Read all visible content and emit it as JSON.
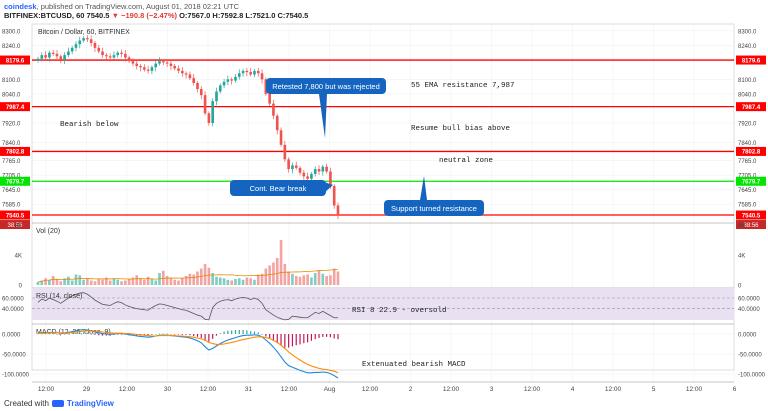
{
  "header": {
    "author": "coindesk",
    "published": "published on TradingView.com, August 01, 2018 02:21 UTC",
    "symbol": "BITFINEX:BTCUSD, 60",
    "last": "7540.5",
    "change_arrow": "▼",
    "change": "−190.8 (−2.47%)",
    "ohlc": "O:7567.0 H:7592.8 L:7521.0 C:7540.5"
  },
  "footer": {
    "created_with": "Created with",
    "brand": "TradingView"
  },
  "colors": {
    "up": "#26a69a",
    "down": "#ef5350",
    "resistance": "#ff0000",
    "support": "#00e600",
    "callout": "#1565c0",
    "macd": "#1e88e5",
    "signal": "#ff8c00",
    "rsi": "#555555",
    "rsi_band": "#e9e0f2"
  },
  "chart_data": [
    {
      "type": "candlestick",
      "title": "Bitcoin / Dollar, 60, BITFINEX",
      "x_ticks": [
        "12:00",
        "29",
        "12:00",
        "30",
        "12:00",
        "31",
        "12:00",
        "Aug",
        "12:00",
        "2",
        "12:00",
        "3",
        "12:00",
        "4",
        "12:00",
        "5",
        "12:00",
        "6"
      ],
      "y_ticks": [
        "8300.0",
        "8240.0",
        "8100.0",
        "8040.0",
        "7920.0",
        "7840.0",
        "7765.0",
        "7705.0",
        "7645.0",
        "7585.0"
      ],
      "ylim": [
        7520,
        8320
      ],
      "series": [
        {
          "x": [
            0,
            1,
            2,
            3,
            4,
            5,
            6,
            7,
            8,
            9,
            10,
            11,
            12,
            13,
            14,
            15,
            16,
            17,
            18,
            19,
            20,
            21,
            22,
            23,
            24,
            25,
            26,
            27,
            28,
            29,
            30,
            31,
            32,
            33,
            34,
            35,
            36,
            37,
            38,
            39,
            40,
            41,
            42,
            43,
            44,
            45,
            46,
            47,
            48,
            49,
            50,
            51,
            52,
            53,
            54,
            55,
            56,
            57,
            58,
            59,
            60,
            61,
            62,
            63,
            64,
            65,
            66,
            67,
            68,
            69,
            70,
            71,
            72,
            73,
            74,
            75,
            76,
            77,
            78,
            79
          ],
          "close": [
            8185,
            8200,
            8190,
            8210,
            8205,
            8195,
            8180,
            8200,
            8215,
            8230,
            8245,
            8260,
            8270,
            8265,
            8250,
            8230,
            8215,
            8200,
            8195,
            8190,
            8200,
            8210,
            8205,
            8190,
            8175,
            8165,
            8155,
            8150,
            8140,
            8135,
            8150,
            8165,
            8175,
            8170,
            8165,
            8155,
            8145,
            8135,
            8125,
            8120,
            8105,
            8085,
            8060,
            8035,
            7960,
            7920,
            8010,
            8050,
            8075,
            8090,
            8100,
            8095,
            8110,
            8125,
            8135,
            8130,
            8120,
            8135,
            8125,
            8100,
            8040,
            8000,
            7950,
            7890,
            7830,
            7770,
            7730,
            7745,
            7735,
            7715,
            7700,
            7690,
            7710,
            7730,
            7720,
            7740,
            7720,
            7660,
            7580,
            7540
          ]
        }
      ],
      "horizontal_levels": [
        {
          "value": 8179.6,
          "label": "8179.6",
          "color": "#ff0000"
        },
        {
          "value": 7987.4,
          "label": "7987.4",
          "color": "#ff0000"
        },
        {
          "value": 7802.8,
          "label": "7802.8",
          "color": "#ff0000"
        },
        {
          "value": 7679.7,
          "label": "7679.7",
          "color": "#00e600"
        },
        {
          "value": 7540.5,
          "label": "7540.5",
          "sub": "38:56",
          "color": "#ff0000"
        }
      ],
      "annotations": [
        "Retested 7,800 but was rejected",
        "55 EMA resistance 7,987",
        "Bearish below",
        "Resume bull bias above",
        "neutral zone",
        "Cont. Bear break",
        "Support turned resistance"
      ]
    },
    {
      "type": "bar",
      "title": "Vol (20)",
      "y_ticks": [
        "8K",
        "4K",
        "0"
      ],
      "ylim": [
        0,
        8000
      ],
      "values": [
        400,
        600,
        900,
        700,
        1200,
        800,
        500,
        900,
        1100,
        600,
        1400,
        1300,
        700,
        900,
        600,
        500,
        800,
        700,
        1000,
        600,
        900,
        700,
        500,
        600,
        800,
        1000,
        1300,
        900,
        700,
        1100,
        800,
        600,
        1600,
        1900,
        1200,
        900,
        700,
        600,
        900,
        1200,
        1500,
        1400,
        1800,
        2200,
        2800,
        2300,
        1600,
        1100,
        1000,
        900,
        700,
        600,
        800,
        900,
        700,
        1000,
        900,
        700,
        1400,
        1500,
        2200,
        2600,
        3000,
        3600,
        6000,
        2800,
        1800,
        1500,
        1200,
        1100,
        1300,
        1400,
        1000,
        1600,
        1900,
        1500,
        1200,
        1300,
        2200,
        1800
      ]
    },
    {
      "type": "line",
      "title": "RSI (14, close)",
      "y_ticks": [
        "60.0000",
        "40.0000"
      ],
      "ylim": [
        15,
        75
      ],
      "annotation": "RSI 8 22.9 - oversold",
      "series": [
        {
          "name": "RSI",
          "values": [
            52,
            58,
            55,
            60,
            57,
            54,
            50,
            55,
            60,
            64,
            67,
            69,
            70,
            67,
            62,
            56,
            52,
            48,
            47,
            46,
            50,
            53,
            51,
            47,
            44,
            42,
            40,
            39,
            38,
            37,
            42,
            46,
            49,
            48,
            46,
            44,
            42,
            40,
            38,
            37,
            34,
            31,
            28,
            26,
            20,
            19,
            42,
            50,
            54,
            56,
            57,
            55,
            58,
            60,
            61,
            60,
            57,
            60,
            57,
            50,
            38,
            33,
            28,
            24,
            21,
            19,
            20,
            26,
            25,
            24,
            23,
            23,
            28,
            33,
            31,
            35,
            31,
            27,
            23,
            22.9
          ]
        }
      ]
    },
    {
      "type": "line",
      "title": "MACD (12, 26, close, 9)",
      "y_ticks": [
        "0.0000",
        "-50.0000",
        "-100.0000"
      ],
      "ylim": [
        -115,
        20
      ],
      "annotation": "Extenuated bearish MACD",
      "series": [
        {
          "name": "MACD",
          "values": [
            2,
            3,
            3,
            4,
            4,
            3,
            2,
            3,
            4,
            6,
            8,
            10,
            11,
            10,
            8,
            5,
            3,
            1,
            0,
            -1,
            0,
            1,
            1,
            0,
            -2,
            -3,
            -5,
            -6,
            -7,
            -8,
            -7,
            -5,
            -3,
            -3,
            -3,
            -4,
            -5,
            -6,
            -7,
            -8,
            -10,
            -13,
            -17,
            -22,
            -32,
            -40,
            -36,
            -30,
            -24,
            -19,
            -15,
            -12,
            -9,
            -6,
            -4,
            -3,
            -3,
            -2,
            -3,
            -7,
            -15,
            -23,
            -33,
            -44,
            -57,
            -70,
            -79,
            -83,
            -87,
            -91,
            -94,
            -97,
            -97,
            -96,
            -96,
            -95,
            -96,
            -99,
            -104,
            -110
          ]
        },
        {
          "name": "Signal",
          "values": [
            1,
            2,
            2,
            3,
            3,
            3,
            3,
            3,
            3,
            4,
            5,
            6,
            7,
            8,
            8,
            7,
            6,
            5,
            4,
            3,
            2,
            2,
            2,
            1,
            1,
            0,
            -1,
            -2,
            -3,
            -4,
            -5,
            -5,
            -4,
            -4,
            -4,
            -4,
            -4,
            -5,
            -5,
            -6,
            -7,
            -8,
            -10,
            -12,
            -16,
            -21,
            -24,
            -26,
            -26,
            -25,
            -23,
            -21,
            -19,
            -16,
            -14,
            -12,
            -10,
            -8,
            -7,
            -7,
            -9,
            -11,
            -16,
            -21,
            -28,
            -36,
            -45,
            -52,
            -59,
            -65,
            -71,
            -76,
            -80,
            -83,
            -86,
            -88,
            -89,
            -91,
            -93,
            -97
          ]
        }
      ]
    }
  ]
}
